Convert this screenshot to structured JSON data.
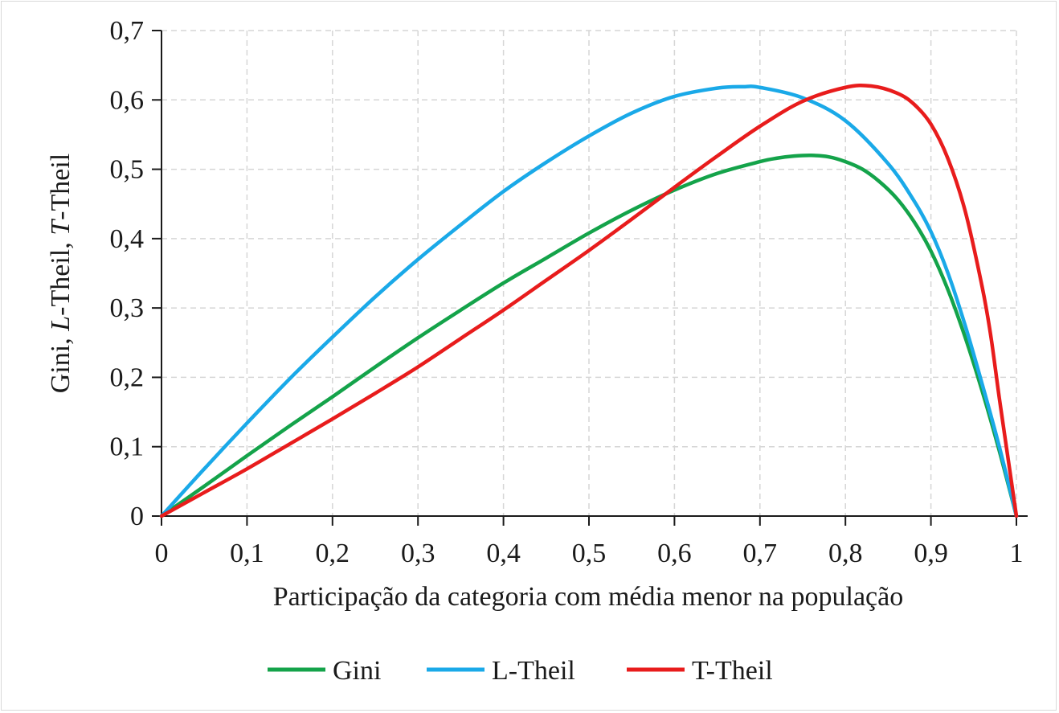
{
  "chart_data": {
    "type": "line",
    "xlabel": "Participação da categoria com média menor na população",
    "ylabel_parts": [
      {
        "text": "Gini, ",
        "italic": false
      },
      {
        "text": "L",
        "italic": true
      },
      {
        "text": "-Theil, ",
        "italic": false
      },
      {
        "text": "T",
        "italic": true
      },
      {
        "text": "-Theil",
        "italic": false
      }
    ],
    "xlim": [
      0,
      1
    ],
    "ylim": [
      0,
      0.7
    ],
    "x_ticks": [
      {
        "value": 0,
        "label": "0"
      },
      {
        "value": 0.1,
        "label": "0,1"
      },
      {
        "value": 0.2,
        "label": "0,2"
      },
      {
        "value": 0.3,
        "label": "0,3"
      },
      {
        "value": 0.4,
        "label": "0,4"
      },
      {
        "value": 0.5,
        "label": "0,5"
      },
      {
        "value": 0.6,
        "label": "0,6"
      },
      {
        "value": 0.7,
        "label": "0,7"
      },
      {
        "value": 0.8,
        "label": "0,8"
      },
      {
        "value": 0.9,
        "label": "0,9"
      },
      {
        "value": 1,
        "label": "1"
      }
    ],
    "y_ticks": [
      {
        "value": 0,
        "label": "0"
      },
      {
        "value": 0.1,
        "label": "0,1"
      },
      {
        "value": 0.2,
        "label": "0,2"
      },
      {
        "value": 0.3,
        "label": "0,3"
      },
      {
        "value": 0.4,
        "label": "0,4"
      },
      {
        "value": 0.5,
        "label": "0,5"
      },
      {
        "value": 0.6,
        "label": "0,6"
      },
      {
        "value": 0.7,
        "label": "0,7"
      }
    ],
    "grid": true,
    "legend_position": "bottom",
    "series": [
      {
        "name": "Gini",
        "color": "#14a34a",
        "x": [
          0,
          0.05,
          0.1,
          0.15,
          0.2,
          0.25,
          0.3,
          0.35,
          0.4,
          0.45,
          0.5,
          0.55,
          0.6,
          0.65,
          0.7,
          0.72,
          0.74,
          0.76,
          0.78,
          0.8,
          0.82,
          0.84,
          0.86,
          0.88,
          0.9,
          0.92,
          0.94,
          0.96,
          0.98,
          1
        ],
        "y": [
          0,
          0.043,
          0.087,
          0.13,
          0.172,
          0.215,
          0.257,
          0.297,
          0.336,
          0.372,
          0.408,
          0.441,
          0.47,
          0.494,
          0.511,
          0.516,
          0.519,
          0.52,
          0.518,
          0.511,
          0.5,
          0.482,
          0.458,
          0.425,
          0.382,
          0.326,
          0.258,
          0.18,
          0.094,
          0
        ]
      },
      {
        "name": "L-Theil",
        "color": "#1aa9e8",
        "x": [
          0,
          0.05,
          0.1,
          0.15,
          0.2,
          0.25,
          0.3,
          0.35,
          0.4,
          0.45,
          0.5,
          0.55,
          0.6,
          0.65,
          0.68,
          0.7,
          0.75,
          0.8,
          0.85,
          0.88,
          0.9,
          0.92,
          0.94,
          0.96,
          0.98,
          1
        ],
        "y": [
          0,
          0.068,
          0.134,
          0.198,
          0.258,
          0.316,
          0.37,
          0.42,
          0.468,
          0.51,
          0.548,
          0.581,
          0.605,
          0.617,
          0.619,
          0.618,
          0.603,
          0.57,
          0.508,
          0.455,
          0.41,
          0.35,
          0.275,
          0.19,
          0.1,
          0
        ]
      },
      {
        "name": "T-Theil",
        "color": "#e81c1c",
        "x": [
          0,
          0.05,
          0.1,
          0.15,
          0.2,
          0.25,
          0.3,
          0.35,
          0.4,
          0.45,
          0.5,
          0.55,
          0.6,
          0.65,
          0.7,
          0.75,
          0.8,
          0.83,
          0.86,
          0.88,
          0.9,
          0.92,
          0.94,
          0.96,
          0.97,
          0.98,
          0.99,
          1
        ],
        "y": [
          0,
          0.034,
          0.068,
          0.104,
          0.14,
          0.177,
          0.215,
          0.256,
          0.297,
          0.34,
          0.383,
          0.428,
          0.474,
          0.519,
          0.562,
          0.598,
          0.618,
          0.62,
          0.61,
          0.594,
          0.565,
          0.515,
          0.44,
          0.33,
          0.26,
          0.17,
          0.085,
          0
        ]
      }
    ]
  }
}
